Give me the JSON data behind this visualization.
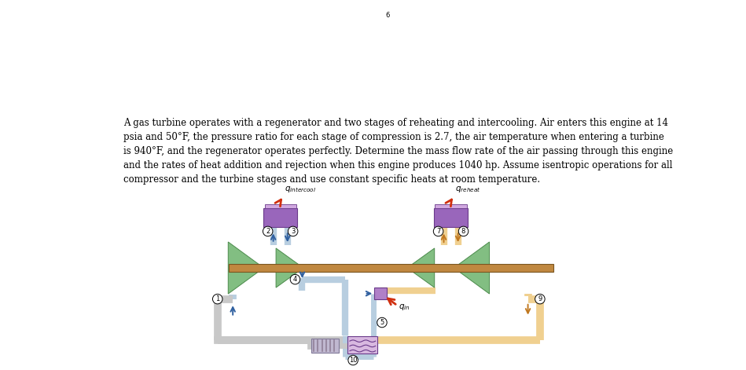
{
  "title_text": "A gas turbine operates with a regenerator and two stages of reheating and intercooling. Air enters this engine at 14\npsia and 50°F, the pressure ratio for each stage of compression is 2.7, the air temperature when entering a turbine\nis 940°F, and the regenerator operates perfectly. Determine the mass flow rate of the air passing through this engine\nand the rates of heat addition and rejection when this engine produces 1040 hp. Assume isentropic operations for all\ncompressor and the turbine stages and use constant specific heats at room temperature.",
  "bg_color": "#ffffff",
  "text_color": "#000000",
  "green_color": "#82be82",
  "green_edge": "#4a8a4a",
  "purple_color": "#9966bb",
  "purple_dark": "#6a3a8a",
  "purple_light": "#d0a8e0",
  "purple_body": "#b080c8",
  "shaft_color": "#c08840",
  "pipe_blue": "#b8cee0",
  "pipe_blue_dark": "#8aaac8",
  "pipe_orange": "#f0d090",
  "pipe_orange_dark": "#e0a840",
  "pipe_gray": "#c8c8c8",
  "pipe_gray_dark": "#a0a0a0",
  "arrow_blue": "#3060a0",
  "arrow_orange": "#c07820",
  "arrow_red": "#d03010"
}
